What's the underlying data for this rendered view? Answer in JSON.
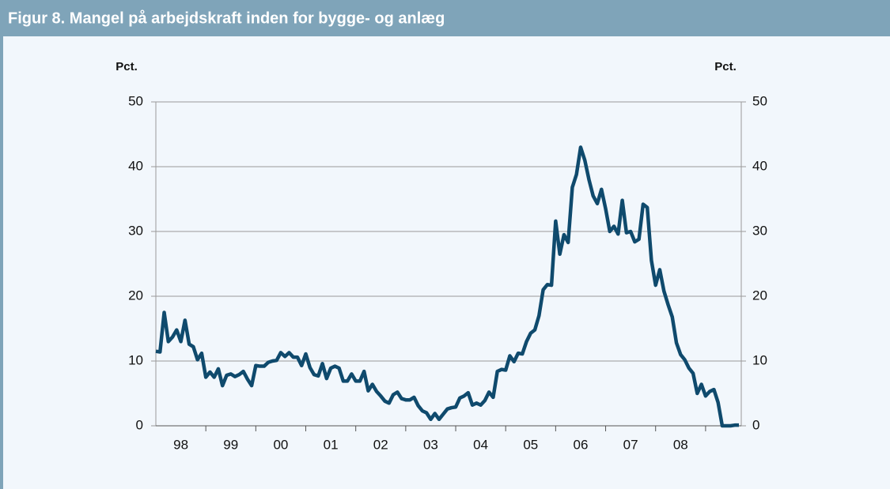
{
  "chart_data": {
    "type": "line",
    "title": "Figur 8.  Mangel på arbejdskraft inden for bygge- og anlæg",
    "y_label": "Pct.",
    "y2_label": "Pct.",
    "categories": [
      null,
      null,
      null,
      null,
      null,
      null,
      "98",
      null,
      null,
      null,
      null,
      null,
      null,
      null,
      null,
      null,
      null,
      null,
      "99",
      null,
      null,
      null,
      null,
      null,
      null,
      null,
      null,
      null,
      null,
      null,
      "00",
      null,
      null,
      null,
      null,
      null,
      null,
      null,
      null,
      null,
      null,
      null,
      "01",
      null,
      null,
      null,
      null,
      null,
      null,
      null,
      null,
      null,
      null,
      null,
      "02",
      null,
      null,
      null,
      null,
      null,
      null,
      null,
      null,
      null,
      null,
      null,
      "03",
      null,
      null,
      null,
      null,
      null,
      null,
      null,
      null,
      null,
      null,
      null,
      "04",
      null,
      null,
      null,
      null,
      null,
      null,
      null,
      null,
      null,
      null,
      null,
      "05",
      null,
      null,
      null,
      null,
      null,
      null,
      null,
      null,
      null,
      null,
      null,
      "06",
      null,
      null,
      null,
      null,
      null,
      null,
      null,
      null,
      null,
      null,
      null,
      "07",
      null,
      null,
      null,
      null,
      null,
      null,
      null,
      null,
      null,
      null,
      null,
      "08",
      null,
      null,
      null,
      null,
      null,
      null,
      null,
      null,
      null,
      null,
      null,
      null,
      null,
      null
    ],
    "series": [
      {
        "name": "Mangel på arbejdskraft",
        "color": "#0f4a6d",
        "values": [
          11.5,
          11.4,
          17.5,
          13,
          13.7,
          14.8,
          13,
          16.3,
          12.6,
          12.2,
          10.2,
          11.2,
          7.5,
          8.3,
          7.5,
          8.8,
          6.2,
          7.8,
          8.0,
          7.6,
          7.9,
          8.4,
          7.2,
          6.2,
          9.3,
          9.2,
          9.2,
          9.8,
          10.0,
          10.1,
          11.3,
          10.7,
          11.3,
          10.6,
          10.6,
          9.3,
          11.1,
          9.0,
          7.9,
          7.7,
          9.6,
          7.3,
          8.9,
          9.2,
          8.9,
          6.9,
          6.9,
          8.0,
          6.9,
          6.9,
          8.4,
          5.4,
          6.4,
          5.3,
          4.6,
          3.8,
          3.5,
          4.8,
          5.2,
          4.2,
          4.0,
          4.0,
          4.4,
          3.1,
          2.3,
          2.0,
          1.0,
          1.9,
          1.0,
          1.8,
          2.6,
          2.8,
          2.9,
          4.3,
          4.6,
          5.1,
          3.2,
          3.5,
          3.2,
          3.9,
          5.2,
          4.4,
          8.4,
          8.7,
          8.6,
          10.8,
          9.9,
          11.2,
          11.1,
          13.0,
          14.3,
          14.8,
          17.0,
          21.0,
          21.8,
          21.7,
          31.6,
          26.5,
          29.5,
          28.3,
          36.8,
          38.8,
          43.0,
          41.0,
          38.0,
          35.5,
          34.3,
          36.5,
          33.5,
          30.0,
          30.8,
          29.6,
          34.8,
          29.8,
          30.0,
          28.4,
          28.8,
          34.2,
          33.7,
          25.5,
          21.7,
          24.1,
          20.8,
          18.7,
          16.8,
          12.8,
          11.0,
          10.2,
          8.9,
          8.1,
          5.0,
          6.4,
          4.6,
          5.3,
          5.6,
          3.6,
          0,
          0,
          0,
          0.1,
          0.1
        ]
      }
    ],
    "ylim": [
      0,
      50
    ],
    "yticks": [
      0,
      10,
      20,
      30,
      40,
      50
    ],
    "y2lim": [
      0,
      50
    ],
    "y2ticks": [
      0,
      10,
      20,
      30,
      40,
      50
    ],
    "grid": true
  }
}
